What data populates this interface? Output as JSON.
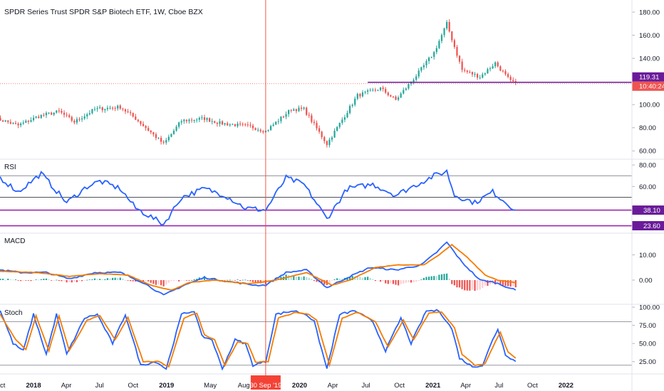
{
  "header": {
    "title": "SPDR Series Trust SPDR S&P Biotech ETF, 1W, Cboe BZX"
  },
  "colors": {
    "up": "#26a69a",
    "down": "#ef5350",
    "hline": "#6a1b9a",
    "rsi": "#2962ff",
    "macd": "#2962ff",
    "signal": "#f57c00",
    "stoch_k": "#2962ff",
    "stoch_d": "#f57c00",
    "crosshair": "#f44336",
    "bands": "#787b86",
    "axis_text": "#131722",
    "grid": "#e0e3eb"
  },
  "chart_data": [
    {
      "type": "candlestick",
      "panel": "price",
      "title": "SPDR Series Trust SPDR S&P Biotech ETF, 1W, Cboe BZX",
      "ylim": [
        54,
        188
      ],
      "y_ticks": [
        "60.00",
        "80.00",
        "100.00",
        "120.00",
        "140.00",
        "160.00",
        "180.00"
      ],
      "y_tick_values": [
        60,
        80,
        100,
        120,
        140,
        160,
        180
      ],
      "close_anchors": [
        [
          "2017-10-02",
          87
        ],
        [
          "2017-11-20",
          82
        ],
        [
          "2018-01-15",
          90
        ],
        [
          "2018-03-12",
          94
        ],
        [
          "2018-04-23",
          85
        ],
        [
          "2018-06-18",
          96
        ],
        [
          "2018-08-27",
          98
        ],
        [
          "2018-10-08",
          88
        ],
        [
          "2018-12-24",
          66
        ],
        [
          "2019-02-11",
          86
        ],
        [
          "2019-04-15",
          88
        ],
        [
          "2019-05-27",
          84
        ],
        [
          "2019-08-19",
          81
        ],
        [
          "2019-09-30",
          77
        ],
        [
          "2019-12-09",
          96
        ],
        [
          "2020-01-13",
          96
        ],
        [
          "2020-03-16",
          66
        ],
        [
          "2020-06-08",
          108
        ],
        [
          "2020-08-10",
          114
        ],
        [
          "2020-09-21",
          104
        ],
        [
          "2020-11-16",
          125
        ],
        [
          "2021-01-04",
          145
        ],
        [
          "2021-02-08",
          170
        ],
        [
          "2021-03-22",
          130
        ],
        [
          "2021-05-10",
          124
        ],
        [
          "2021-06-21",
          136
        ],
        [
          "2021-08-02",
          120
        ],
        [
          "2021-08-16",
          119.31
        ]
      ],
      "horizontal_line": {
        "value": 119.31,
        "from": "2020-07-06"
      },
      "last_price": "119.31",
      "countdown": "10:40:24"
    },
    {
      "type": "line",
      "panel": "rsi",
      "title": "RSI",
      "ylim": [
        18,
        84
      ],
      "y_ticks": [
        "60.00",
        "80.00"
      ],
      "y_tick_values": [
        60,
        80
      ],
      "bands": [
        70,
        50
      ],
      "levels": [
        38.1,
        23.6
      ],
      "level_labels": [
        "38.10",
        "23.60"
      ],
      "anchors": [
        [
          "2017-10-02",
          68
        ],
        [
          "2017-11-20",
          55
        ],
        [
          "2018-01-22",
          72
        ],
        [
          "2018-03-05",
          56
        ],
        [
          "2018-04-02",
          45
        ],
        [
          "2018-05-28",
          60
        ],
        [
          "2018-07-02",
          65
        ],
        [
          "2018-08-27",
          58
        ],
        [
          "2018-10-08",
          40
        ],
        [
          "2018-12-24",
          25
        ],
        [
          "2019-02-11",
          50
        ],
        [
          "2019-04-15",
          58
        ],
        [
          "2019-06-10",
          52
        ],
        [
          "2019-08-05",
          40
        ],
        [
          "2019-09-30",
          38.1
        ],
        [
          "2019-11-25",
          68
        ],
        [
          "2020-01-13",
          62
        ],
        [
          "2020-03-16",
          30
        ],
        [
          "2020-05-11",
          58
        ],
        [
          "2020-07-20",
          62
        ],
        [
          "2020-09-21",
          52
        ],
        [
          "2021-01-04",
          70
        ],
        [
          "2021-02-08",
          74
        ],
        [
          "2021-03-01",
          52
        ],
        [
          "2021-04-26",
          45
        ],
        [
          "2021-06-14",
          55
        ],
        [
          "2021-08-16",
          38.1
        ]
      ]
    },
    {
      "type": "line",
      "panel": "macd",
      "title": "MACD",
      "ylim": [
        -9,
        18
      ],
      "y_ticks": [
        "0.00",
        "10.00"
      ],
      "y_tick_values": [
        0,
        10
      ],
      "histogram_colors": [
        "#26a69a",
        "#b2dfdb",
        "#ef5350",
        "#ffcdd2"
      ],
      "series": [
        {
          "role": "macd",
          "anchors": [
            [
              "2017-10-02",
              4
            ],
            [
              "2017-11-27",
              3
            ],
            [
              "2018-02-05",
              3
            ],
            [
              "2018-04-09",
              0.5
            ],
            [
              "2018-06-18",
              3
            ],
            [
              "2018-08-27",
              3
            ],
            [
              "2018-10-29",
              -1
            ],
            [
              "2018-12-24",
              -6
            ],
            [
              "2019-02-18",
              -2
            ],
            [
              "2019-04-15",
              1
            ],
            [
              "2019-06-17",
              -0.5
            ],
            [
              "2019-09-02",
              -2
            ],
            [
              "2019-09-30",
              -2
            ],
            [
              "2019-11-25",
              3
            ],
            [
              "2020-01-20",
              4
            ],
            [
              "2020-03-16",
              -3
            ],
            [
              "2020-05-11",
              1
            ],
            [
              "2020-07-13",
              5
            ],
            [
              "2020-09-21",
              4
            ],
            [
              "2020-11-30",
              6
            ],
            [
              "2021-01-11",
              11
            ],
            [
              "2021-02-08",
              15
            ],
            [
              "2021-03-22",
              7
            ],
            [
              "2021-05-10",
              0
            ],
            [
              "2021-06-21",
              -1
            ],
            [
              "2021-08-16",
              -4
            ]
          ]
        },
        {
          "role": "signal",
          "anchors": [
            [
              "2017-10-02",
              3.5
            ],
            [
              "2018-01-08",
              3
            ],
            [
              "2018-04-09",
              1.5
            ],
            [
              "2018-07-02",
              2.5
            ],
            [
              "2018-09-17",
              2
            ],
            [
              "2018-11-19",
              -2
            ],
            [
              "2019-01-14",
              -4
            ],
            [
              "2019-03-04",
              -1
            ],
            [
              "2019-05-13",
              0
            ],
            [
              "2019-08-12",
              -1.5
            ],
            [
              "2019-10-28",
              0
            ],
            [
              "2020-01-20",
              3
            ],
            [
              "2020-03-30",
              -2
            ],
            [
              "2020-05-18",
              0
            ],
            [
              "2020-07-27",
              5
            ],
            [
              "2020-09-28",
              6
            ],
            [
              "2020-12-07",
              6
            ],
            [
              "2021-01-18",
              10
            ],
            [
              "2021-02-22",
              14
            ],
            [
              "2021-04-05",
              9
            ],
            [
              "2021-05-24",
              2
            ],
            [
              "2021-06-28",
              0
            ],
            [
              "2021-08-16",
              -1
            ]
          ]
        }
      ]
    },
    {
      "type": "line",
      "panel": "stoch",
      "title": "Stoch",
      "ylim": [
        10,
        102
      ],
      "y_ticks": [
        "25.00",
        "50.00",
        "75.00",
        "100.00"
      ],
      "y_tick_values": [
        25,
        50,
        75,
        100
      ],
      "bands": [
        80,
        20
      ],
      "series": [
        {
          "role": "k",
          "anchors": [
            [
              "2017-10-02",
              95
            ],
            [
              "2017-11-06",
              50
            ],
            [
              "2017-12-04",
              40
            ],
            [
              "2018-01-01",
              90
            ],
            [
              "2018-02-05",
              35
            ],
            [
              "2018-03-05",
              90
            ],
            [
              "2018-04-02",
              35
            ],
            [
              "2018-05-21",
              85
            ],
            [
              "2018-06-25",
              90
            ],
            [
              "2018-08-06",
              50
            ],
            [
              "2018-09-10",
              90
            ],
            [
              "2018-10-22",
              20
            ],
            [
              "2018-12-03",
              25
            ],
            [
              "2018-12-31",
              15
            ],
            [
              "2019-02-11",
              90
            ],
            [
              "2019-03-18",
              95
            ],
            [
              "2019-04-08",
              60
            ],
            [
              "2019-05-06",
              55
            ],
            [
              "2019-06-03",
              15
            ],
            [
              "2019-07-08",
              55
            ],
            [
              "2019-08-05",
              50
            ],
            [
              "2019-08-26",
              20
            ],
            [
              "2019-09-30",
              25
            ],
            [
              "2019-10-28",
              90
            ],
            [
              "2019-12-16",
              95
            ],
            [
              "2020-01-20",
              90
            ],
            [
              "2020-02-10",
              80
            ],
            [
              "2020-03-16",
              15
            ],
            [
              "2020-04-20",
              90
            ],
            [
              "2020-06-01",
              95
            ],
            [
              "2020-07-20",
              80
            ],
            [
              "2020-08-24",
              40
            ],
            [
              "2020-10-05",
              85
            ],
            [
              "2020-11-02",
              50
            ],
            [
              "2020-12-14",
              95
            ],
            [
              "2021-01-18",
              95
            ],
            [
              "2021-02-22",
              70
            ],
            [
              "2021-03-15",
              30
            ],
            [
              "2021-04-19",
              18
            ],
            [
              "2021-05-17",
              20
            ],
            [
              "2021-06-14",
              55
            ],
            [
              "2021-06-28",
              70
            ],
            [
              "2021-07-19",
              35
            ],
            [
              "2021-08-16",
              25
            ]
          ]
        },
        {
          "role": "d",
          "anchors": [
            [
              "2017-10-02",
              90
            ],
            [
              "2017-11-13",
              55
            ],
            [
              "2017-12-11",
              42
            ],
            [
              "2018-01-08",
              88
            ],
            [
              "2018-02-12",
              40
            ],
            [
              "2018-03-12",
              88
            ],
            [
              "2018-04-09",
              40
            ],
            [
              "2018-05-28",
              82
            ],
            [
              "2018-07-02",
              88
            ],
            [
              "2018-08-13",
              55
            ],
            [
              "2018-09-17",
              86
            ],
            [
              "2018-10-29",
              25
            ],
            [
              "2018-12-10",
              25
            ],
            [
              "2019-01-07",
              18
            ],
            [
              "2019-02-18",
              85
            ],
            [
              "2019-03-25",
              92
            ],
            [
              "2019-04-15",
              62
            ],
            [
              "2019-05-13",
              55
            ],
            [
              "2019-06-10",
              20
            ],
            [
              "2019-07-15",
              52
            ],
            [
              "2019-08-12",
              50
            ],
            [
              "2019-09-02",
              24
            ],
            [
              "2019-10-07",
              25
            ],
            [
              "2019-11-04",
              85
            ],
            [
              "2019-12-23",
              93
            ],
            [
              "2020-01-27",
              90
            ],
            [
              "2020-02-17",
              82
            ],
            [
              "2020-03-23",
              20
            ],
            [
              "2020-04-27",
              85
            ],
            [
              "2020-06-08",
              93
            ],
            [
              "2020-07-27",
              80
            ],
            [
              "2020-08-31",
              45
            ],
            [
              "2020-10-12",
              82
            ],
            [
              "2020-11-09",
              55
            ],
            [
              "2020-12-21",
              92
            ],
            [
              "2021-01-25",
              93
            ],
            [
              "2021-03-01",
              72
            ],
            [
              "2021-03-22",
              35
            ],
            [
              "2021-04-26",
              20
            ],
            [
              "2021-05-24",
              22
            ],
            [
              "2021-06-21",
              52
            ],
            [
              "2021-07-05",
              65
            ],
            [
              "2021-07-26",
              38
            ],
            [
              "2021-08-16",
              30
            ]
          ]
        }
      ]
    }
  ],
  "time_axis": {
    "first_week": "2017-09-18",
    "last_week": "2021-08-16",
    "xlim": [
      "2017-10-01",
      "2022-07-01"
    ],
    "ticks": [
      {
        "label": "Oct",
        "date": "2017-10-01"
      },
      {
        "label": "2018",
        "date": "2018-01-01"
      },
      {
        "label": "Apr",
        "date": "2018-04-01"
      },
      {
        "label": "Jul",
        "date": "2018-07-01"
      },
      {
        "label": "Oct",
        "date": "2018-10-01"
      },
      {
        "label": "2019",
        "date": "2019-01-01"
      },
      {
        "label": "May",
        "date": "2019-05-01"
      },
      {
        "label": "Aug",
        "date": "2019-08-01"
      },
      {
        "label": "2020",
        "date": "2020-01-01"
      },
      {
        "label": "Apr",
        "date": "2020-04-01"
      },
      {
        "label": "Jul",
        "date": "2020-07-01"
      },
      {
        "label": "Oct",
        "date": "2020-10-01"
      },
      {
        "label": "2021",
        "date": "2021-01-01"
      },
      {
        "label": "Apr",
        "date": "2021-04-01"
      },
      {
        "label": "Jul",
        "date": "2021-07-01"
      },
      {
        "label": "Oct",
        "date": "2021-10-01"
      },
      {
        "label": "2022",
        "date": "2022-01-01"
      }
    ],
    "crosshair_date": "2019-09-30",
    "crosshair_label": "30 Sep '19"
  }
}
